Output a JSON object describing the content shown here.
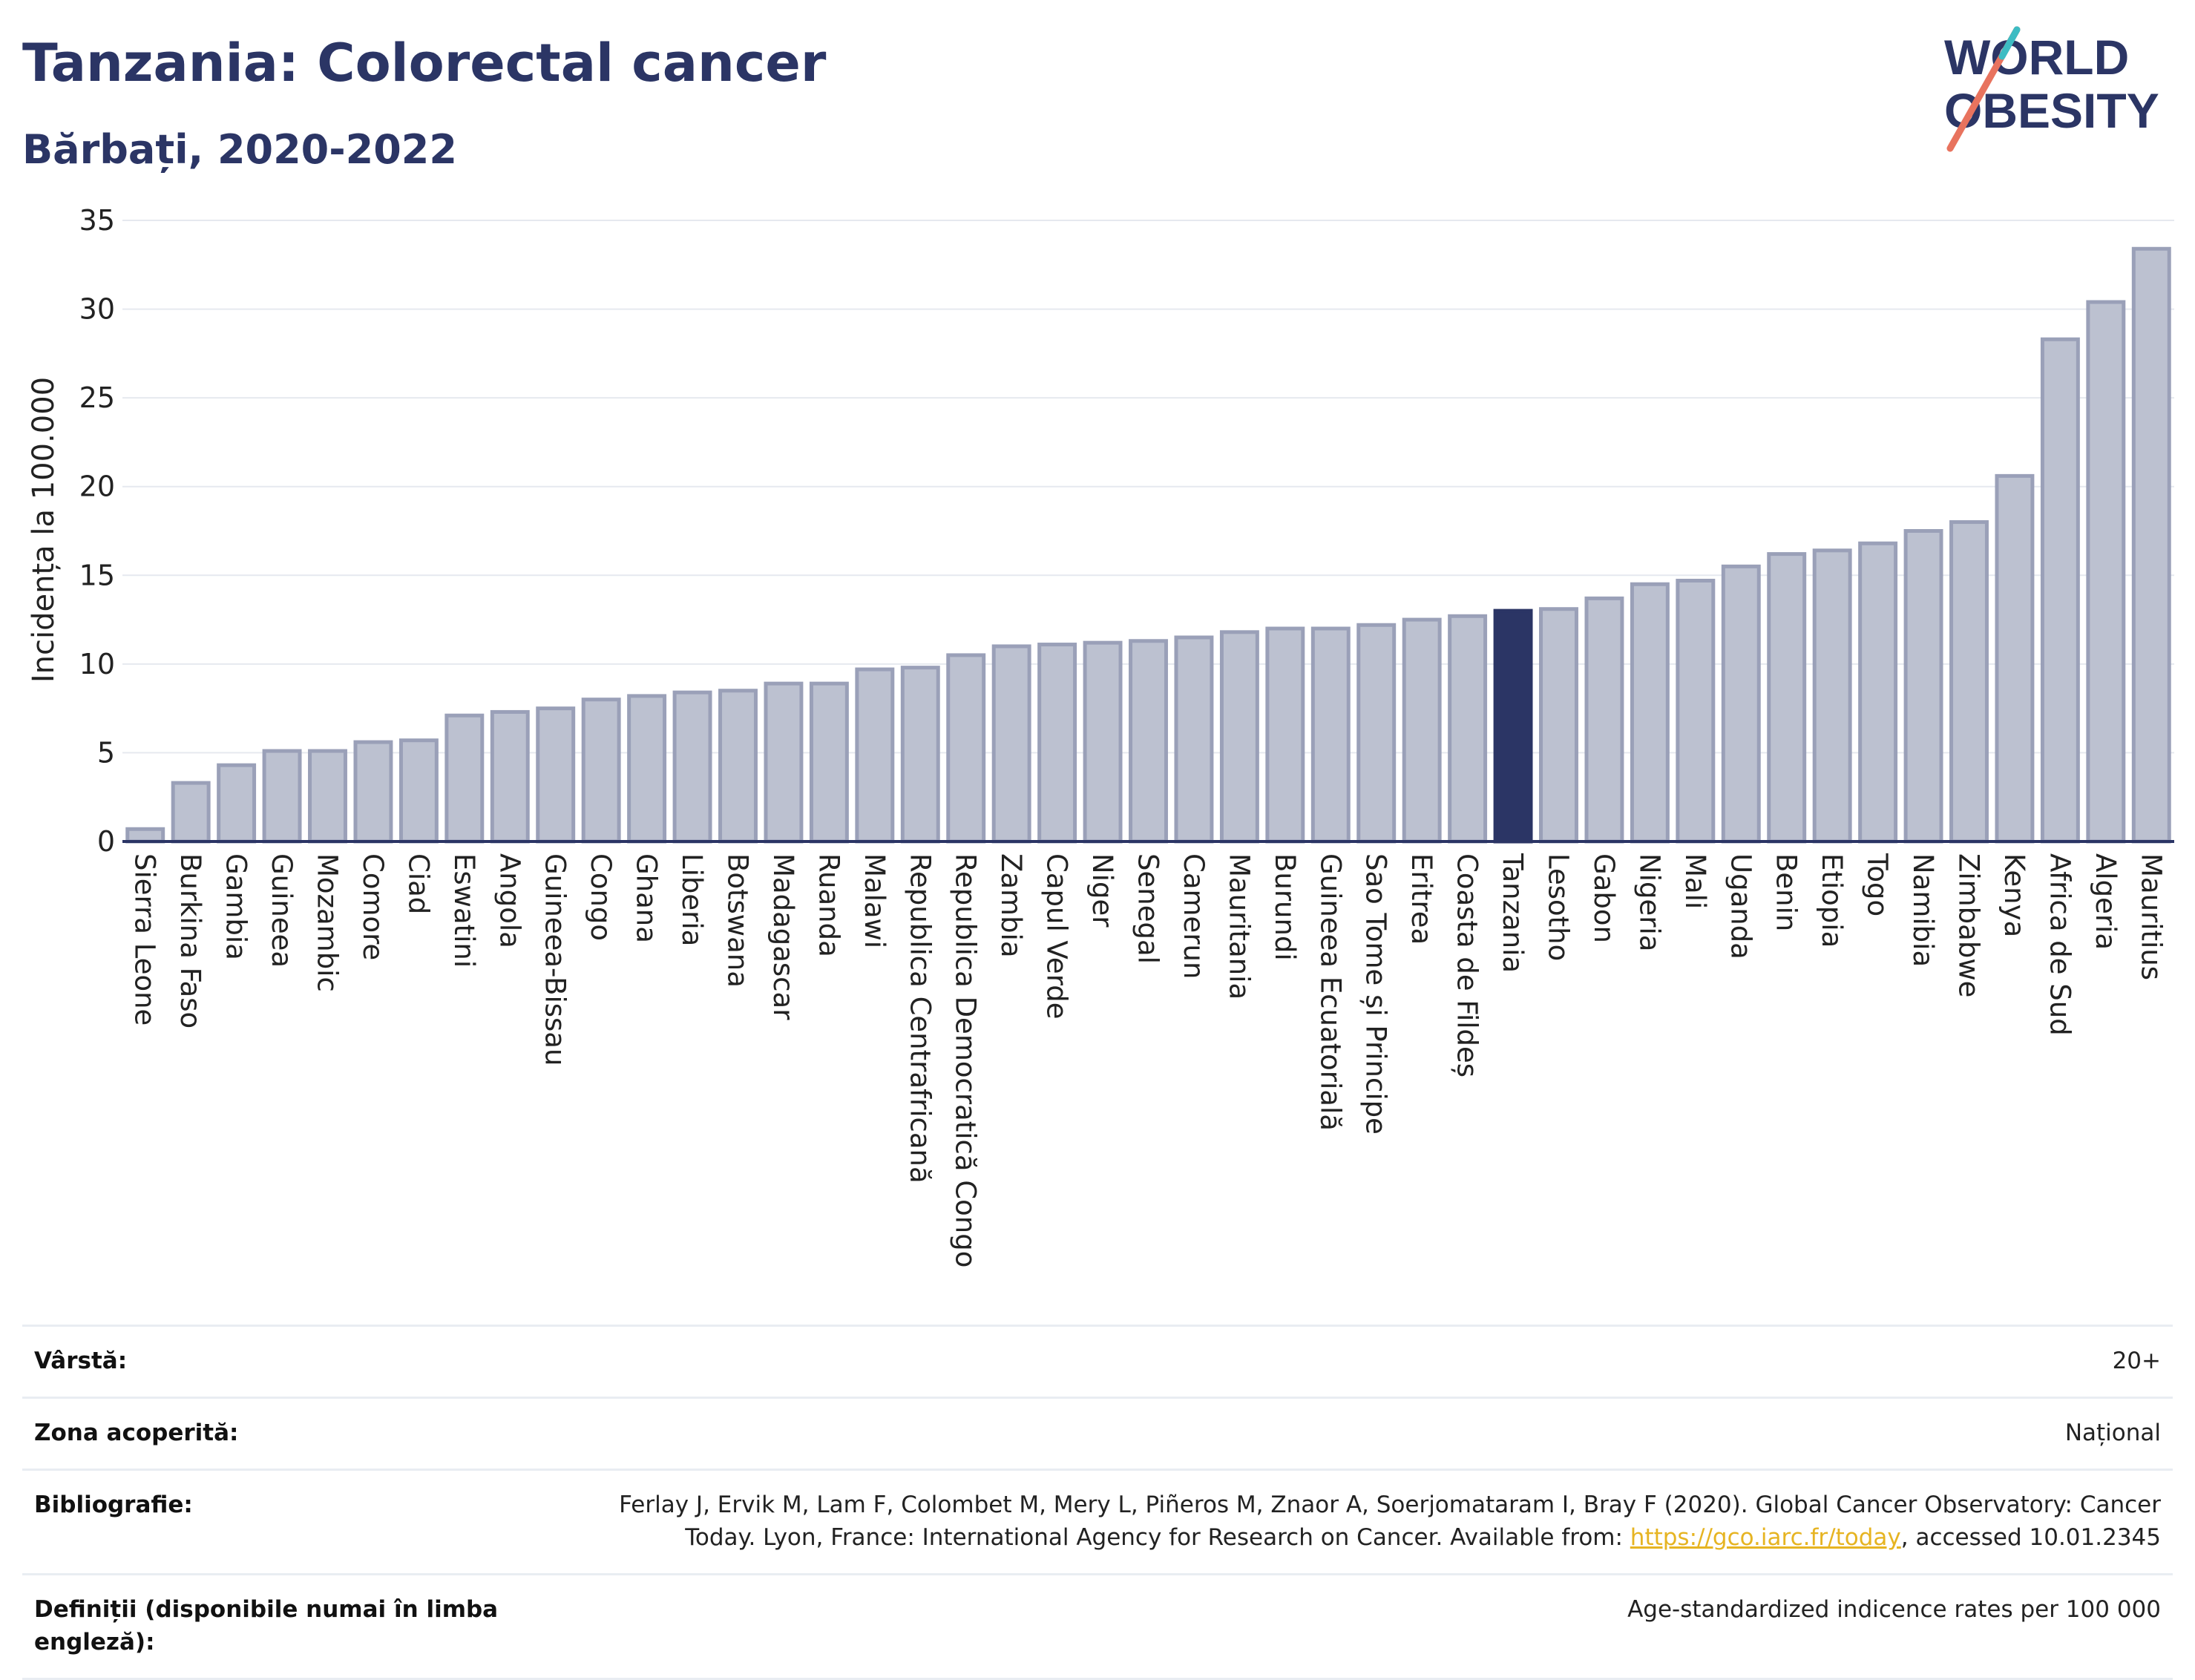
{
  "header": {
    "title": "Tanzania: Colorectal cancer",
    "subtitle": "Bărbați, 2020-2022"
  },
  "logo": {
    "line1": "WORLD",
    "line2": "OBESITY"
  },
  "colors": {
    "highlight": "#2b3565",
    "bar": "#bcc1d0",
    "bar_border": "#9aa0b8",
    "title": "#2b3565",
    "link": "#e6b422",
    "grid": "#e6e9ef"
  },
  "chart_data": {
    "type": "bar",
    "ylabel": "Incidența la 100.000",
    "ylim": [
      0,
      35
    ],
    "yticks": [
      0,
      5,
      10,
      15,
      20,
      25,
      30,
      35
    ],
    "highlight": "Tanzania",
    "categories": [
      "Sierra Leone",
      "Burkina Faso",
      "Gambia",
      "Guineea",
      "Mozambic",
      "Comore",
      "Ciad",
      "Eswatini",
      "Angola",
      "Guineea-Bissau",
      "Congo",
      "Ghana",
      "Liberia",
      "Botswana",
      "Madagascar",
      "Ruanda",
      "Malawi",
      "Republica Centrafricană",
      "Republica Democratică Congo",
      "Zambia",
      "Capul Verde",
      "Niger",
      "Senegal",
      "Camerun",
      "Mauritania",
      "Burundi",
      "Guineea Ecuatorială",
      "Sao Tome și Principe",
      "Eritrea",
      "Coasta de Fildeș",
      "Tanzania",
      "Lesotho",
      "Gabon",
      "Nigeria",
      "Mali",
      "Uganda",
      "Benin",
      "Etiopia",
      "Togo",
      "Namibia",
      "Zimbabwe",
      "Kenya",
      "Africa de Sud",
      "Algeria",
      "Mauritius"
    ],
    "values": [
      0.7,
      3.3,
      4.3,
      5.1,
      5.1,
      5.6,
      5.7,
      7.1,
      7.3,
      7.5,
      8.0,
      8.2,
      8.4,
      8.5,
      8.9,
      8.9,
      9.7,
      9.8,
      10.5,
      11.0,
      11.1,
      11.2,
      11.3,
      11.5,
      11.8,
      12.0,
      12.0,
      12.2,
      12.5,
      12.7,
      13.0,
      13.1,
      13.7,
      14.5,
      14.7,
      15.5,
      16.2,
      16.4,
      16.8,
      17.5,
      18.0,
      20.6,
      28.3,
      30.4,
      33.4
    ]
  },
  "meta": [
    {
      "label": "Vârstă:",
      "value": "20+"
    },
    {
      "label": "Zona acoperită:",
      "value": "Național"
    },
    {
      "label": "Bibliografie:",
      "value_line1": "Ferlay J, Ervik M, Lam F, Colombet M, Mery L, Piñeros M, Znaor A, Soerjomataram I, Bray F (2020). Global Cancer Observatory: Cancer",
      "value_line2_pre": "Today. Lyon, France: International Agency for Research on Cancer. Available from: ",
      "link": "https://gco.iarc.fr/today",
      "value_line2_post": ", accessed 10.01.2345"
    },
    {
      "label": "Definiții (disponibile numai în limba engleză):",
      "value": "Age-standardized indicence rates per 100 000"
    }
  ]
}
